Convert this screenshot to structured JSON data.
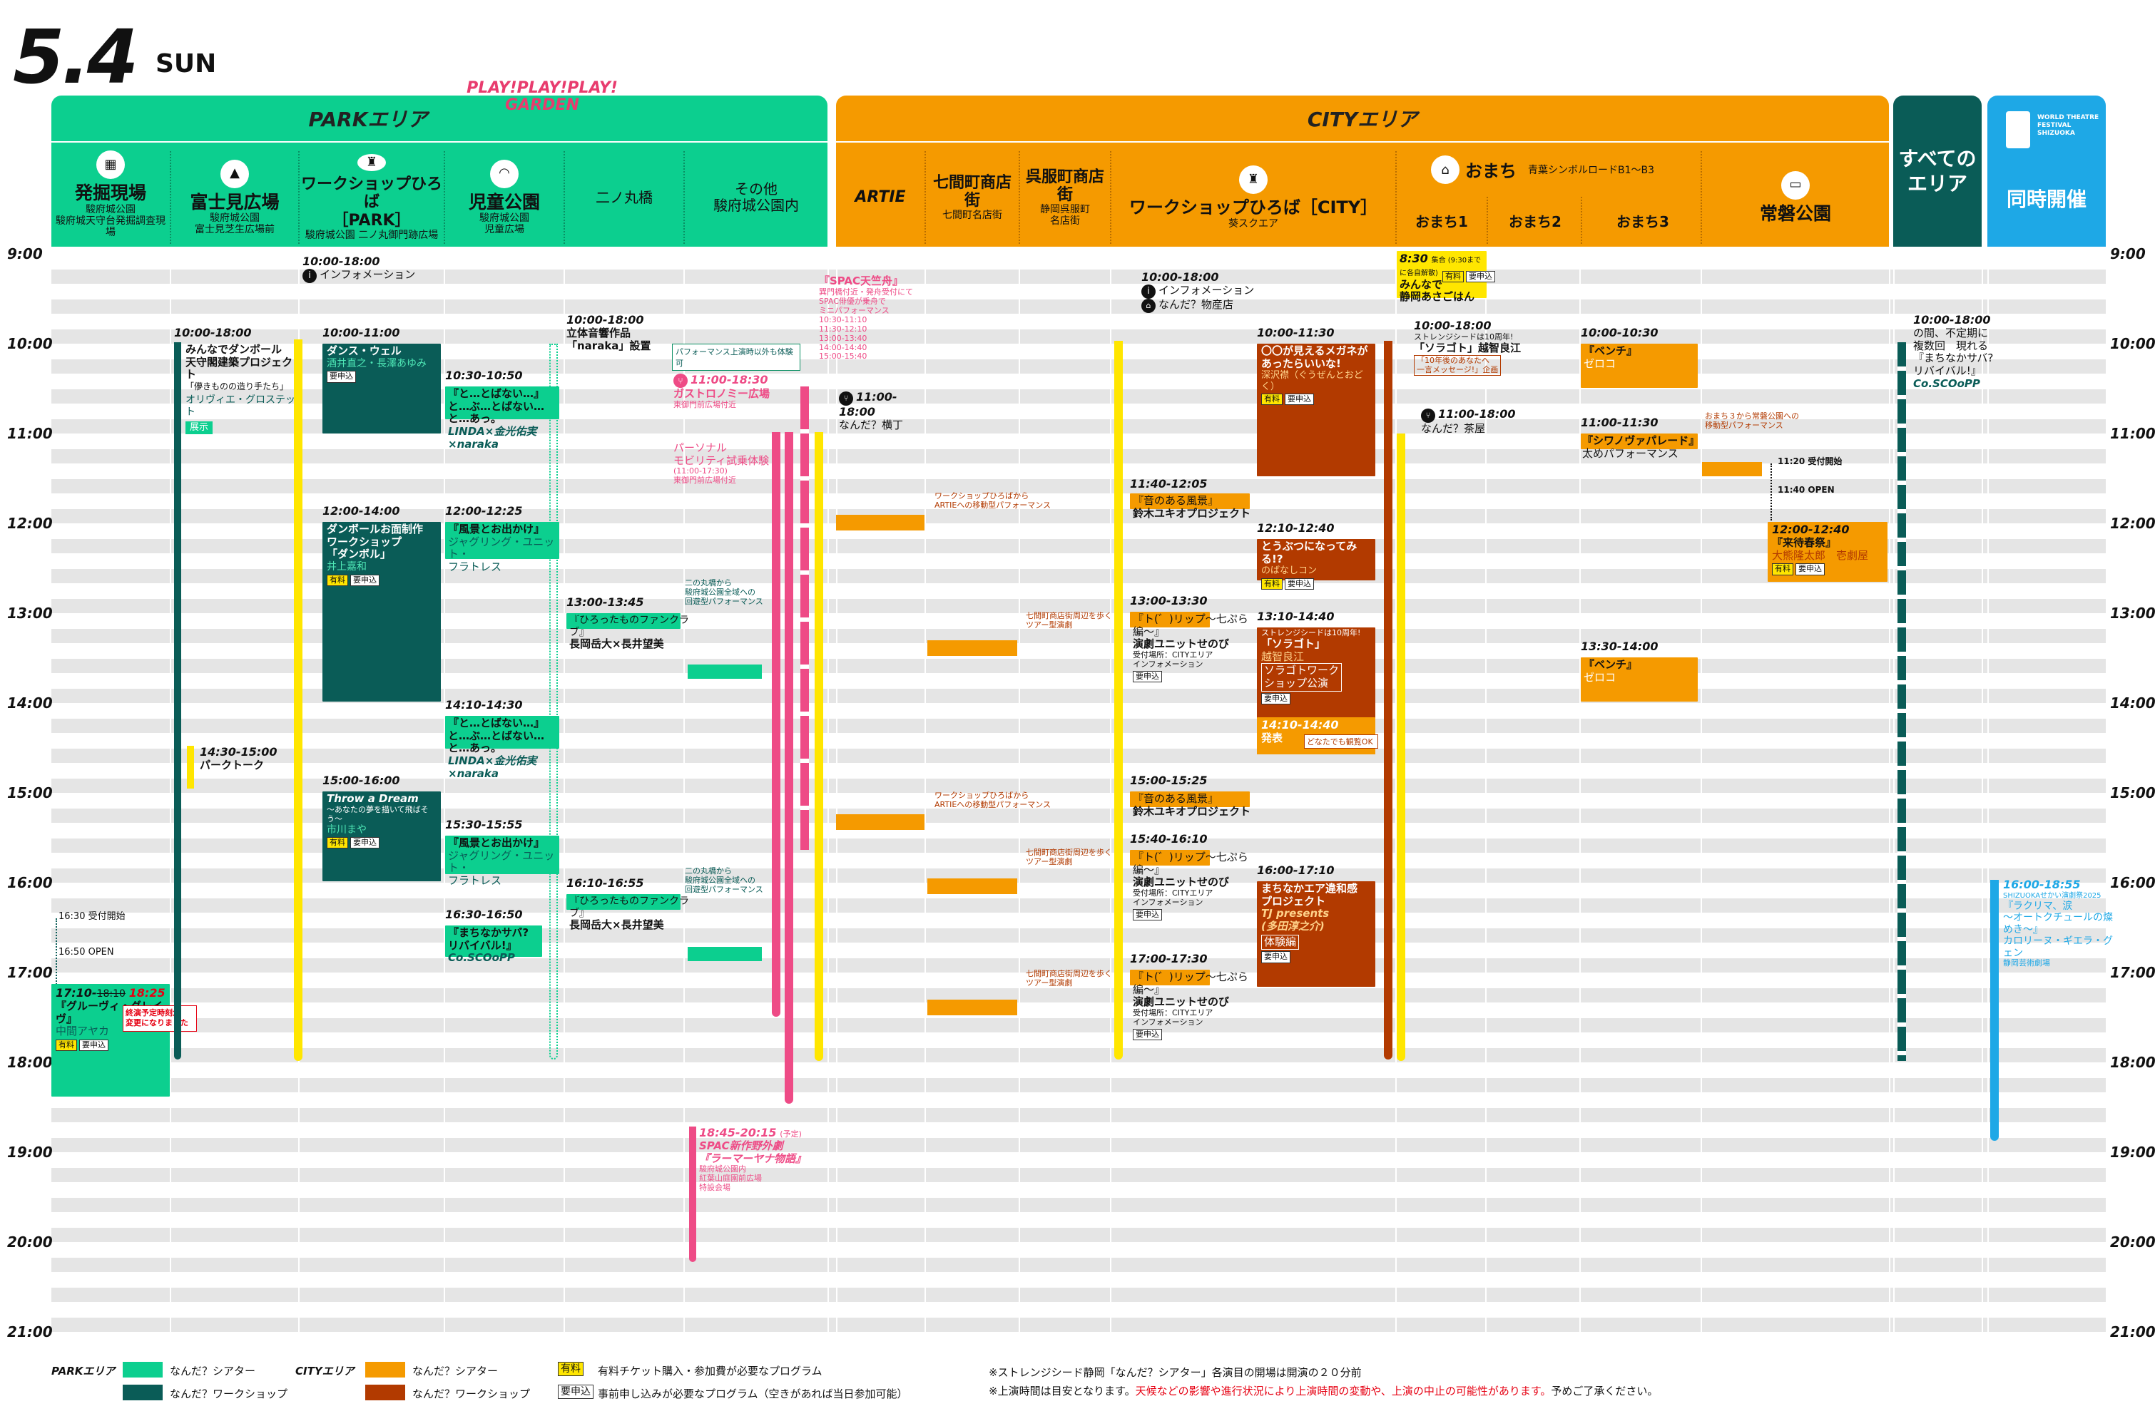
{
  "header": {
    "date": "5.4",
    "dow": "SUN"
  },
  "areas": {
    "park": "PARKエリア",
    "garden_logo": "PLAY!PLAY!PLAY! GARDEN",
    "city": "CITYエリア",
    "all": "すべての\nエリア",
    "simul": "同時開催",
    "wtf_logo": "WORLD THEATRE FESTIVAL SHIZUOKA"
  },
  "columns": {
    "hakkutsu": {
      "name": "発掘現場",
      "sub": "駿府城公園\n駿府城天守台発掘調査現場"
    },
    "fujimi": {
      "name": "富士見広場",
      "sub": "駿府城公園\n富士見芝生広場前"
    },
    "ws_park": {
      "name": "ワークショップひろば\n［PARK］",
      "sub": "駿府城公園 二ノ丸御門跡広場"
    },
    "jido": {
      "name": "児童公園",
      "sub": "駿府城公園\n児童広場"
    },
    "ninomaru": {
      "name": "二ノ丸橋",
      "sub": ""
    },
    "sonota": {
      "name": "その他\n駿府城公園内",
      "sub": ""
    },
    "artie": {
      "name": "ARTIE",
      "sub": ""
    },
    "shichiken": {
      "name": "七間町商店街",
      "sub": "七間町名店街"
    },
    "gofuku": {
      "name": "呉服町商店街",
      "sub": "静岡呉服町\n名店街"
    },
    "ws_city": {
      "name": "ワークショップひろば［CITY］",
      "sub": "葵スクエア"
    },
    "omachi": {
      "name": "おまち",
      "sub": "青葉シンボルロードB1〜B3"
    },
    "omachi1": "おまち1",
    "omachi2": "おまち2",
    "omachi3": "おまち3",
    "tokiwa": {
      "name": "常磐公園",
      "sub": ""
    }
  },
  "hours": [
    "9:00",
    "10:00",
    "11:00",
    "12:00",
    "13:00",
    "14:00",
    "15:00",
    "16:00",
    "17:00",
    "18:00",
    "19:00",
    "20:00",
    "21:00"
  ],
  "events": {
    "e1": {
      "time": "17:10-",
      "time_old": "18:10",
      "time_new": "18:25",
      "title": "『グルーヴィ・グレイヴ』",
      "who": "中間アヤカ"
    },
    "e1_note": "終演予定時刻が\n変更になりました",
    "e1_a": "16:30 受付開始",
    "e1_b": "16:50 OPEN",
    "e2": {
      "time": "10:00-18:00",
      "title": "みんなでダンボール\n天守閣建築プロジェクト",
      "sub": "「儚きものの造り手たち」",
      "who": "オリヴィエ・グロステット",
      "tag": "展示"
    },
    "e3": {
      "time": "14:30-15:00",
      "title": "パークトーク"
    },
    "e4": {
      "time": "10:00-18:00",
      "title": "インフォメーション"
    },
    "e5": {
      "time": "10:00-11:00",
      "title": "ダンス・ウェル",
      "who": "酒井直之・長澤あゆみ"
    },
    "e6": {
      "time": "12:00-14:00",
      "title": "ダンボールお面制作\nワークショップ\n「ダンボル」",
      "who": "井上嘉和"
    },
    "e7": {
      "time": "15:00-16:00",
      "title": "Throw a Dream",
      "sub": "〜あなたの夢を描いて飛ばそう〜",
      "who": "市川まや"
    },
    "e8": {
      "time": "10:30-10:50",
      "title": "『と…とばない…』\nと…ぶ…とばない…\nと…あっ。",
      "who": "LINDA×金光佑実\n×naraka"
    },
    "e9": {
      "time": "12:00-12:25",
      "title": "『風景とお出かけ』",
      "who": "ジャグリング・ユニット・\nフラトレス"
    },
    "e10": {
      "time": "14:10-14:30",
      "title": "『と…とばない…』\nと…ぶ…とばない…\nと…あっ。",
      "who": "LINDA×金光佑実\n×naraka"
    },
    "e11": {
      "time": "15:30-15:55",
      "title": "『風景とお出かけ』",
      "who": "ジャグリング・ユニット・\nフラトレス"
    },
    "e12": {
      "time": "16:30-16:50",
      "title": "『まちなかサバ?\nリバイバル!』",
      "who": "Co.SCOoPP"
    },
    "e13": {
      "time": "10:00-18:00",
      "title": "立体音響作品\n「naraka」設置",
      "note": "パフォーマンス上演時以外も体験可"
    },
    "e14": {
      "time": "13:00-13:45",
      "title": "『ひろったものファンクラブ』",
      "who": "長岡岳大×長井望美"
    },
    "e15": {
      "time": "16:10-16:55",
      "title": "『ひろったものファンクラブ』",
      "who": "長岡岳大×長井望美"
    },
    "e16": "二の丸橋から\n駿府城公園全域への\n回遊型パフォーマンス",
    "e17": {
      "title": "『SPAC天竺舟』",
      "sub": "巽門橋付近・発舟受付にて\nSPAC俳優が乗舟で\nミニパフォーマンス",
      "times": "10:30-11:10\n11:30-12:10\n13:00-13:40\n14:00-14:40\n15:00-15:40"
    },
    "e18": {
      "time": "11:00-18:30",
      "title": "ガストロノミー広場",
      "loc": "東御門前広場付近"
    },
    "e19": {
      "title": "パーソナル\nモビリティ試乗体験",
      "sub": "(11:00-17:30)",
      "loc": "東御門前広場付近"
    },
    "e20": {
      "time": "11:00-18:00",
      "title": "なんだ？横丁"
    },
    "e21": {
      "time": "18:45-20:15",
      "time_note": "(予定)",
      "title": "SPAC新作野外劇\n『ラーマーヤナ物語』",
      "loc": "駿府城公園内\n紅葉山庭園前広場\n特設会場"
    },
    "e22": "ワークショップひろばから\nARTIEへの移動型パフォーマンス",
    "e23": "七間町商店街周辺を歩く\nツアー型演劇",
    "e24": {
      "time": "10:00-18:00",
      "title": "インフォメーション",
      "title2": "なんだ？物産店"
    },
    "e25": {
      "time": "10:00-11:30",
      "title": "〇〇が見えるメガネが\nあったらいいな!",
      "who": "深沢襟（ぐうぜんとおどく）"
    },
    "e26": {
      "time": "11:40-12:05",
      "title": "『音のある風景』",
      "who": "鈴木ユキオプロジェクト"
    },
    "e27": {
      "time": "12:10-12:40",
      "title": "とうぶつになってみる!?",
      "who": "のばなしコン"
    },
    "e28": {
      "time": "13:00-13:30",
      "title": "『ト(゛)リップ〜七ぷら編〜』",
      "who": "演劇ユニットせのび",
      "loc": "受付場所：CITYエリア\nインフォメーション"
    },
    "e29": {
      "time": "13:10-14:40",
      "pre": "ストレンジシードは10周年!",
      "title": "「ソラゴト」",
      "who": "越智良江",
      "title2": "ソラゴトワーク\nショップ公演"
    },
    "e30": {
      "time": "14:10-14:40",
      "title": "発表",
      "note": "どなたでも観覧OK"
    },
    "e31": {
      "time": "15:00-15:25",
      "title": "『音のある風景』",
      "who": "鈴木ユキオプロジェクト"
    },
    "e32": {
      "time": "15:40-16:10",
      "title": "『ト(゛)リップ〜七ぷら編〜』",
      "who": "演劇ユニットせのび",
      "loc": "受付場所：CITYエリア\nインフォメーション"
    },
    "e33": {
      "time": "16:00-17:10",
      "title": "まちなかエア違和感\nプロジェクト",
      "who": "TJ presents\n(多田淳之介)",
      "tag": "体験編"
    },
    "e34": {
      "time": "17:00-17:30",
      "title": "『ト(゛)リップ〜七ぷら編〜』",
      "who": "演劇ユニットせのび",
      "loc": "受付場所：CITYエリア\nインフォメーション"
    },
    "e35": {
      "time": "8:30",
      "time_note": "集合 (9:30までに各自解散)",
      "title": "みんなで\n静岡あさごはん"
    },
    "e36": {
      "time": "10:00-18:00",
      "pre": "ストレンジシードは10周年!",
      "title": "「ソラゴト」越智良江",
      "sub": "「10年後のあなたへ\n一言メッセージ!」企画"
    },
    "e37": {
      "time": "11:00-18:00",
      "title": "なんだ？茶屋"
    },
    "e38": {
      "time": "10:00-10:30",
      "title": "『ベンチ』",
      "who": "ゼロコ"
    },
    "e39": {
      "time": "11:00-11:30",
      "title": "『シワノヴァパレード』",
      "who": "太めパフォーマンス"
    },
    "e40": "おまち３から常磐公園への\n移動型パフォーマンス",
    "e41": {
      "time": "13:30-14:00",
      "title": "『ベンチ』",
      "who": "ゼロコ"
    },
    "e42": {
      "a": "11:20 受付開始",
      "b": "11:40 OPEN",
      "time": "12:00-12:40",
      "title": "『来待春祭』",
      "who": "大熊隆太郎　壱劇屋"
    },
    "e43": {
      "time": "10:00-18:00",
      "title": "の間、不定期に\n複数回　現れる\n『まちなかサバ?\nリバイバル!』",
      "who": "Co.SCOoPP"
    },
    "e44": {
      "time": "16:00-18:55",
      "sub": "SHIZUOKAせかい演劇祭2025",
      "title": "『ラクリマ、涙\n〜オートクチュールの燦めき〜』",
      "who": "カロリーヌ・ギエラ・グェン",
      "loc": "静岡芸術劇場"
    }
  },
  "tags": {
    "paid": "有料",
    "reg": "要申込"
  },
  "legend": {
    "park": "PARKエリア",
    "city": "CITYエリア",
    "theater": "なんだ？シアター",
    "workshop": "なんだ？ワークショップ",
    "paid_desc": "有料チケット購入・参加費が必要なプログラム",
    "reg_desc": "事前申し込みが必要なプログラム（空きがあれば当日参加可能）",
    "note1": "※ストレンジシード静岡「なんだ？シアター」各演目の開場は開演の２０分前",
    "note2a": "※上演時間は目安となります。",
    "note2b": "天候などの影響や進行状況により上演時間の変動や、上演の中止の可能性があります。",
    "note2c": "予めご了承ください。"
  },
  "colors": {
    "park_theater": "#0ccf8f",
    "park_workshop": "#0a5c57",
    "city_theater": "#f59a00",
    "city_workshop": "#b23a00",
    "info": "#ffe600",
    "spac": "#ee4b86",
    "simul": "#1ea8e6"
  }
}
